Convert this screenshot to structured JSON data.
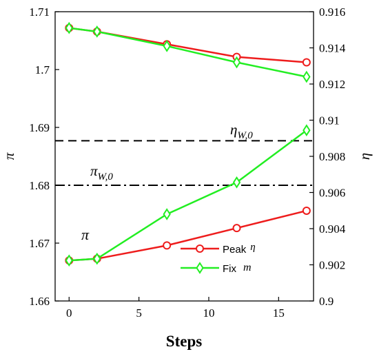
{
  "chart_data": {
    "type": "line",
    "xlabel": "Steps",
    "ylabel_left": "π",
    "ylabel_right": "η",
    "xlim": [
      -1,
      17.5
    ],
    "ylim_left": [
      1.66,
      1.71
    ],
    "ylim_right": [
      0.9,
      0.916
    ],
    "x_ticks": [
      0,
      5,
      10,
      15
    ],
    "y_ticks_left": [
      1.66,
      1.67,
      1.68,
      1.69,
      1.7,
      1.71
    ],
    "y_tick_labels_left": [
      "1.66",
      "1.67",
      "1.68",
      "1.69",
      "1.7",
      "1.71"
    ],
    "y_ticks_right": [
      0.9,
      0.902,
      0.904,
      0.906,
      0.908,
      0.91,
      0.912,
      0.914,
      0.916
    ],
    "y_tick_labels_right": [
      "0.9",
      "0.902",
      "0.904",
      "0.906",
      "0.908",
      "0.91",
      "0.912",
      "0.914",
      "0.916"
    ],
    "series": [
      {
        "name": "Peak η",
        "legend_main": "Peak",
        "legend_sym": "η",
        "color": "#ee1c1c",
        "marker": "circle",
        "axis": "right",
        "x": [
          0,
          2,
          7,
          12,
          17
        ],
        "values": [
          0.9151,
          0.9149,
          0.9142,
          0.9135,
          0.9132
        ]
      },
      {
        "name": "Peak η",
        "color": "#ee1c1c",
        "marker": "circle",
        "axis": "left",
        "x": [
          0,
          2,
          7,
          12,
          17
        ],
        "values": [
          1.667,
          1.6673,
          1.6696,
          1.6726,
          1.6756
        ]
      },
      {
        "name": "Fix m",
        "legend_main": "Fix",
        "legend_sym": "m",
        "color": "#22ee22",
        "marker": "diamond",
        "axis": "right",
        "x": [
          0,
          2,
          7,
          12,
          17
        ],
        "values": [
          0.9151,
          0.9149,
          0.9141,
          0.9132,
          0.9124
        ]
      },
      {
        "name": "Fix m",
        "color": "#22ee22",
        "marker": "diamond",
        "axis": "left",
        "x": [
          0,
          2,
          7,
          12,
          17
        ],
        "values": [
          1.667,
          1.6673,
          1.675,
          1.6805,
          1.6895
        ]
      }
    ],
    "reference_lines": [
      {
        "label_main": "η",
        "label_sub": "W,0",
        "axis": "left",
        "value": 1.6877,
        "style": "dashed"
      },
      {
        "label_main": "π",
        "label_sub": "W,0",
        "axis": "left",
        "value": 1.68,
        "style": "dashdot"
      }
    ],
    "annotations": [
      {
        "text": "π",
        "x": 1,
        "y": 1.6725,
        "axis": "left"
      }
    ],
    "legend_position": "lower-right",
    "grid": false
  }
}
